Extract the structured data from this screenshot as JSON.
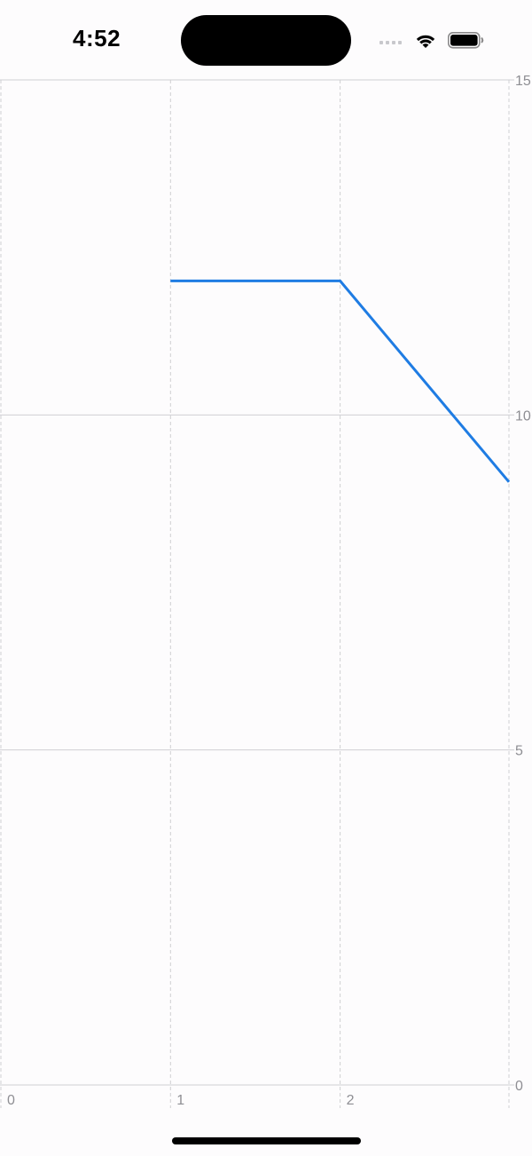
{
  "status_bar": {
    "time": "4:52",
    "icons": [
      "cellular-signal-icon",
      "wifi-icon",
      "battery-icon"
    ]
  },
  "chart_data": {
    "type": "line",
    "title": "",
    "xlabel": "",
    "ylabel": "",
    "xlim": [
      0,
      3
    ],
    "ylim": [
      0,
      15
    ],
    "x_ticks": [
      "0",
      "1",
      "2"
    ],
    "y_ticks": [
      "0",
      "5",
      "10",
      "15"
    ],
    "grid": true,
    "series": [
      {
        "x": [
          1,
          2,
          3
        ],
        "y": [
          12,
          12,
          9
        ],
        "color": "#1f7ce3"
      }
    ]
  },
  "colors": {
    "background": "#fdfcfd",
    "grid_solid": "#cfcfd2",
    "grid_dashed": "#cfcfd2",
    "tick_label": "#8e8e93",
    "line": "#1f7ce3"
  }
}
